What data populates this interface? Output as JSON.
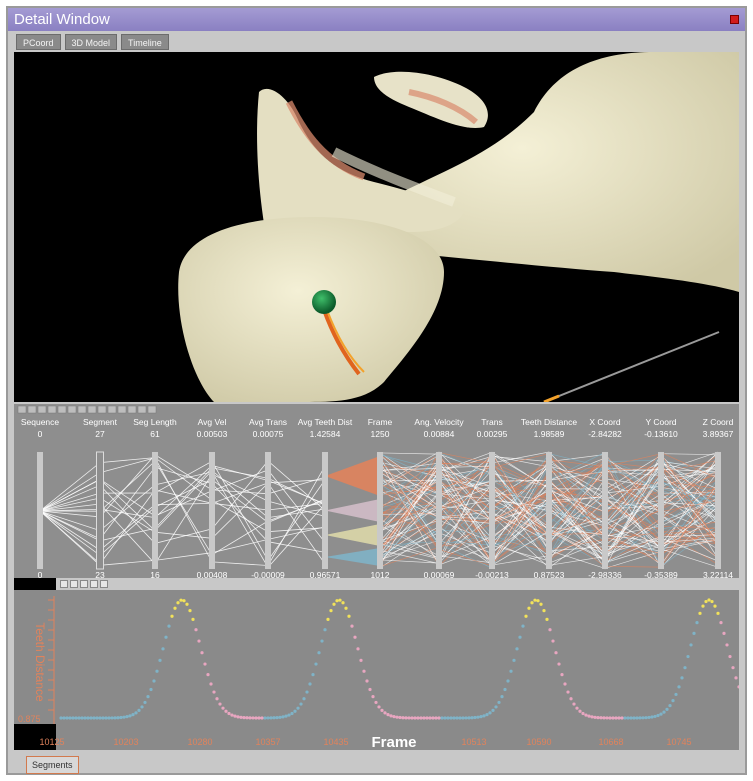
{
  "window": {
    "title": "Detail Window"
  },
  "tabs": [
    {
      "label": "PCoord"
    },
    {
      "label": "3D Model"
    },
    {
      "label": "Timeline"
    }
  ],
  "parallel_coords": {
    "axes": [
      {
        "name": "Sequence",
        "top": "0",
        "bottom": "0"
      },
      {
        "name": "Segment",
        "top": "27",
        "bottom": "23"
      },
      {
        "name": "Seg Length",
        "top": "61",
        "bottom": "16"
      },
      {
        "name": "Avg Vel",
        "top": "0.00503",
        "bottom": "0.00408"
      },
      {
        "name": "Avg Trans",
        "top": "0.00075",
        "bottom": "-0.00009"
      },
      {
        "name": "Avg Teeth Dist",
        "top": "1.42584",
        "bottom": "0.96571"
      },
      {
        "name": "Frame",
        "top": "1250",
        "bottom": "1012"
      },
      {
        "name": "Ang. Velocity",
        "top": "0.00884",
        "bottom": "0.00069"
      },
      {
        "name": "Trans",
        "top": "0.00295",
        "bottom": "-0.00213"
      },
      {
        "name": "Teeth Distance",
        "top": "1.98589",
        "bottom": "0.87523"
      },
      {
        "name": "X Coord",
        "top": "-2.84282",
        "bottom": "-2.98336"
      },
      {
        "name": "Y Coord",
        "top": "-0.13610",
        "bottom": "-0.35389"
      },
      {
        "name": "Z Coord",
        "top": "3.89367",
        "bottom": "3.22114"
      }
    ]
  },
  "timeline": {
    "y_label": "Teeth Distance",
    "y_min_label": "0.875",
    "x_label": "Frame",
    "ticks": [
      "10125",
      "10203",
      "10280",
      "10357",
      "10435",
      "10513",
      "10590",
      "10668",
      "10745"
    ]
  },
  "footer": {
    "segments_label": "Segments"
  },
  "colors": {
    "accent_orange": "#e0835c",
    "cyan": "#7fb3c7",
    "pink": "#e8a6c0",
    "yellow": "#f2e25a"
  }
}
